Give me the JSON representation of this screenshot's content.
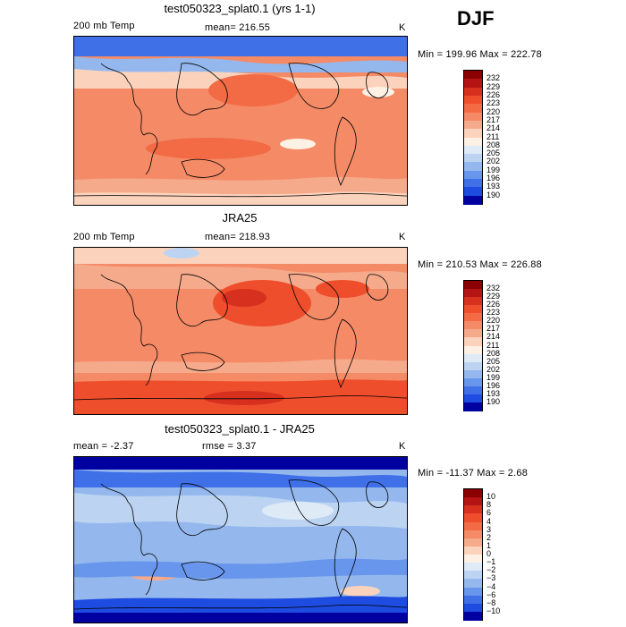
{
  "season": "DJF",
  "panels": [
    {
      "title": "test050323_splat0.1 (yrs 1-1)",
      "left_label": "200 mb Temp",
      "mean_label": "mean= 216.55",
      "units": "K",
      "range_label": "Min = 199.96 Max = 222.78",
      "colorbar": {
        "ticks": [
          "232",
          "229",
          "226",
          "223",
          "220",
          "217",
          "214",
          "211",
          "208",
          "205",
          "202",
          "199",
          "196",
          "193",
          "190"
        ],
        "colors": [
          "#8b0000",
          "#b41414",
          "#d7301f",
          "#ef4e2c",
          "#f26b44",
          "#f48a66",
          "#f6aa8c",
          "#fbd3bc",
          "#fdf0e4",
          "#deebf7",
          "#bcd4f2",
          "#94b8ee",
          "#6896ec",
          "#3f70e8",
          "#1e4be0",
          "#0000a0"
        ]
      },
      "map": {
        "style": "warm"
      }
    },
    {
      "title": "JRA25",
      "left_label": "200 mb Temp",
      "mean_label": "mean= 218.93",
      "units": "K",
      "range_label": "Min = 210.53 Max = 226.88",
      "colorbar": {
        "ticks": [
          "232",
          "229",
          "226",
          "223",
          "220",
          "217",
          "214",
          "211",
          "208",
          "205",
          "202",
          "199",
          "196",
          "193",
          "190"
        ],
        "colors": [
          "#8b0000",
          "#b41414",
          "#d7301f",
          "#ef4e2c",
          "#f26b44",
          "#f48a66",
          "#f6aa8c",
          "#fbd3bc",
          "#fdf0e4",
          "#deebf7",
          "#bcd4f2",
          "#94b8ee",
          "#6896ec",
          "#3f70e8",
          "#1e4be0",
          "#0000a0"
        ]
      },
      "map": {
        "style": "warm2"
      }
    },
    {
      "title": "test050323_splat0.1 - JRA25",
      "left_label": "mean =  -2.37",
      "mean_label": "rmse =   3.37",
      "units": "K",
      "range_label": "Min = -11.37 Max =   2.68",
      "colorbar": {
        "ticks": [
          "10",
          "8",
          "6",
          "4",
          "3",
          "2",
          "1",
          "0",
          "−1",
          "−2",
          "−3",
          "−4",
          "−6",
          "−8",
          "−10"
        ],
        "colors": [
          "#8b0000",
          "#b41414",
          "#d7301f",
          "#ef4e2c",
          "#f26b44",
          "#f48a66",
          "#f6aa8c",
          "#fbd3bc",
          "#fdf0e4",
          "#deebf7",
          "#bcd4f2",
          "#94b8ee",
          "#6896ec",
          "#3f70e8",
          "#1e4be0",
          "#0000a0"
        ]
      },
      "map": {
        "style": "cool"
      }
    }
  ]
}
